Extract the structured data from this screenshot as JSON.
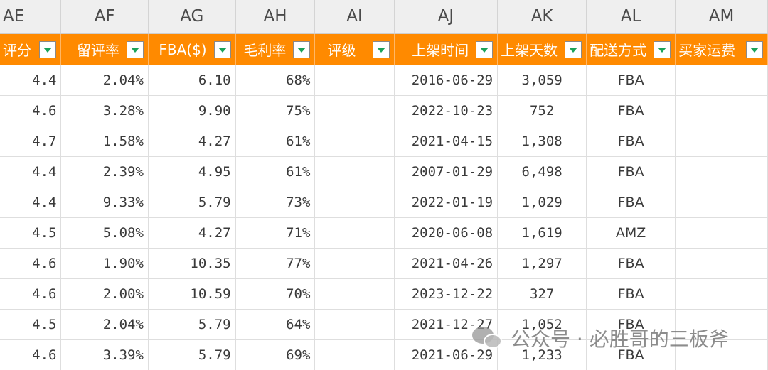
{
  "columns": [
    "AE",
    "AF",
    "AG",
    "AH",
    "AI",
    "AJ",
    "AK",
    "AL",
    "AM"
  ],
  "headers": [
    "评分",
    "留评率",
    "FBA($)",
    "毛利率",
    "评级",
    "上架时间",
    "上架天数",
    "配送方式",
    "买家运费"
  ],
  "rows": [
    [
      "4.4",
      "2.04%",
      "6.10",
      "68%",
      "",
      "2016-06-29",
      "3,059",
      "FBA",
      ""
    ],
    [
      "4.6",
      "3.28%",
      "9.90",
      "75%",
      "",
      "2022-10-23",
      "752",
      "FBA",
      ""
    ],
    [
      "4.7",
      "1.58%",
      "4.27",
      "61%",
      "",
      "2021-04-15",
      "1,308",
      "FBA",
      ""
    ],
    [
      "4.4",
      "2.39%",
      "4.95",
      "61%",
      "",
      "2007-01-29",
      "6,498",
      "FBA",
      ""
    ],
    [
      "4.4",
      "9.33%",
      "5.79",
      "73%",
      "",
      "2022-01-19",
      "1,029",
      "FBA",
      ""
    ],
    [
      "4.5",
      "5.08%",
      "4.27",
      "71%",
      "",
      "2020-06-08",
      "1,619",
      "AMZ",
      ""
    ],
    [
      "4.6",
      "1.90%",
      "10.35",
      "77%",
      "",
      "2021-04-26",
      "1,297",
      "FBA",
      ""
    ],
    [
      "4.6",
      "2.00%",
      "10.59",
      "70%",
      "",
      "2023-12-22",
      "327",
      "FBA",
      ""
    ],
    [
      "4.5",
      "2.04%",
      "5.79",
      "64%",
      "",
      "2021-12-27",
      "1,052",
      "FBA",
      ""
    ],
    [
      "4.6",
      "3.39%",
      "5.79",
      "69%",
      "",
      "2021-06-29",
      "1,233",
      "FBA",
      ""
    ]
  ],
  "watermark": {
    "text": "公众号 · 必胜哥的三板斧",
    "icon": "wechat-icon"
  },
  "colors": {
    "header_bg": "#ff8a00",
    "header_text": "#ffffff",
    "filter_arrow": "#1aa35a",
    "column_letter_bg": "#efefef"
  }
}
